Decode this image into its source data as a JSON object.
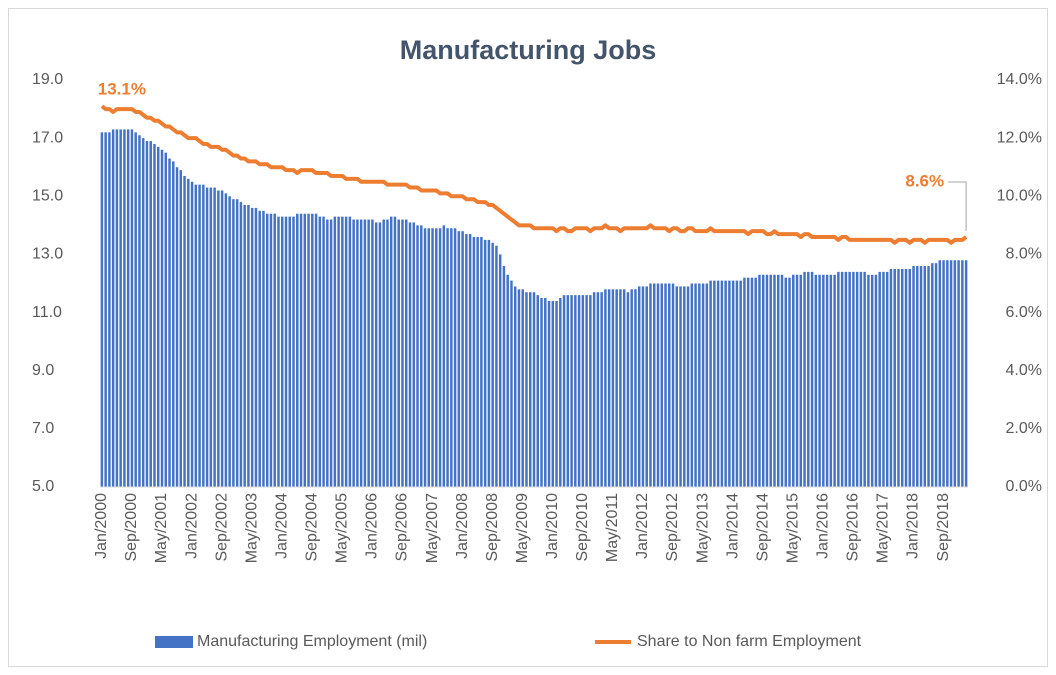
{
  "chart_data": {
    "type": "bar-line",
    "title": "Manufacturing Jobs",
    "categories": [
      "Jan/2000",
      null,
      null,
      null,
      null,
      null,
      null,
      null,
      "Sep/2000",
      null,
      null,
      null,
      null,
      null,
      null,
      null,
      "May/2001",
      null,
      null,
      null,
      null,
      null,
      null,
      null,
      "Jan/2002",
      null,
      null,
      null,
      null,
      null,
      null,
      null,
      "Sep/2002",
      null,
      null,
      null,
      null,
      null,
      null,
      null,
      "May/2003",
      null,
      null,
      null,
      null,
      null,
      null,
      null,
      "Jan/2004",
      null,
      null,
      null,
      null,
      null,
      null,
      null,
      "Sep/2004",
      null,
      null,
      null,
      null,
      null,
      null,
      null,
      "May/2005",
      null,
      null,
      null,
      null,
      null,
      null,
      null,
      "Jan/2006",
      null,
      null,
      null,
      null,
      null,
      null,
      null,
      "Sep/2006",
      null,
      null,
      null,
      null,
      null,
      null,
      null,
      "May/2007",
      null,
      null,
      null,
      null,
      null,
      null,
      null,
      "Jan/2008",
      null,
      null,
      null,
      null,
      null,
      null,
      null,
      "Sep/2008",
      null,
      null,
      null,
      null,
      null,
      null,
      null,
      "May/2009",
      null,
      null,
      null,
      null,
      null,
      null,
      null,
      "Jan/2010",
      null,
      null,
      null,
      null,
      null,
      null,
      null,
      "Sep/2010",
      null,
      null,
      null,
      null,
      null,
      null,
      null,
      "May/2011",
      null,
      null,
      null,
      null,
      null,
      null,
      null,
      "Jan/2012",
      null,
      null,
      null,
      null,
      null,
      null,
      null,
      "Sep/2012",
      null,
      null,
      null,
      null,
      null,
      null,
      null,
      "May/2013",
      null,
      null,
      null,
      null,
      null,
      null,
      null,
      "Jan/2014",
      null,
      null,
      null,
      null,
      null,
      null,
      null,
      "Sep/2014",
      null,
      null,
      null,
      null,
      null,
      null,
      null,
      "May/2015",
      null,
      null,
      null,
      null,
      null,
      null,
      null,
      "Jan/2016",
      null,
      null,
      null,
      null,
      null,
      null,
      null,
      "Sep/2016",
      null,
      null,
      null,
      null,
      null,
      null,
      null,
      "May/2017",
      null,
      null,
      null,
      null,
      null,
      null,
      null,
      "Jan/2018",
      null,
      null,
      null,
      null,
      null,
      null,
      null,
      "Sep/2018",
      null,
      null,
      null,
      null,
      null,
      null
    ],
    "series": [
      {
        "name": "Manufacturing Employment (mil)",
        "type": "bar",
        "color": "#4472c4",
        "values": [
          17.2,
          17.2,
          17.2,
          17.3,
          17.3,
          17.3,
          17.3,
          17.3,
          17.3,
          17.2,
          17.1,
          17.0,
          16.9,
          16.9,
          16.8,
          16.7,
          16.6,
          16.5,
          16.3,
          16.2,
          16.0,
          15.9,
          15.7,
          15.6,
          15.5,
          15.4,
          15.4,
          15.4,
          15.3,
          15.3,
          15.3,
          15.2,
          15.2,
          15.1,
          15.0,
          14.9,
          14.9,
          14.8,
          14.7,
          14.7,
          14.6,
          14.6,
          14.5,
          14.5,
          14.4,
          14.4,
          14.4,
          14.3,
          14.3,
          14.3,
          14.3,
          14.3,
          14.4,
          14.4,
          14.4,
          14.4,
          14.4,
          14.4,
          14.3,
          14.3,
          14.2,
          14.2,
          14.3,
          14.3,
          14.3,
          14.3,
          14.3,
          14.2,
          14.2,
          14.2,
          14.2,
          14.2,
          14.2,
          14.1,
          14.1,
          14.2,
          14.2,
          14.3,
          14.3,
          14.2,
          14.2,
          14.2,
          14.1,
          14.1,
          14.0,
          14.0,
          13.9,
          13.9,
          13.9,
          13.9,
          13.9,
          14.0,
          13.9,
          13.9,
          13.9,
          13.8,
          13.8,
          13.7,
          13.7,
          13.6,
          13.6,
          13.6,
          13.5,
          13.5,
          13.4,
          13.3,
          13.0,
          12.6,
          12.3,
          12.1,
          11.9,
          11.8,
          11.8,
          11.7,
          11.7,
          11.7,
          11.6,
          11.5,
          11.5,
          11.4,
          11.4,
          11.4,
          11.5,
          11.6,
          11.6,
          11.6,
          11.6,
          11.6,
          11.6,
          11.6,
          11.6,
          11.7,
          11.7,
          11.7,
          11.8,
          11.8,
          11.8,
          11.8,
          11.8,
          11.8,
          11.7,
          11.8,
          11.8,
          11.9,
          11.9,
          11.9,
          12.0,
          12.0,
          12.0,
          12.0,
          12.0,
          12.0,
          12.0,
          11.9,
          11.9,
          11.9,
          11.9,
          12.0,
          12.0,
          12.0,
          12.0,
          12.0,
          12.1,
          12.1,
          12.1,
          12.1,
          12.1,
          12.1,
          12.1,
          12.1,
          12.1,
          12.2,
          12.2,
          12.2,
          12.2,
          12.3,
          12.3,
          12.3,
          12.3,
          12.3,
          12.3,
          12.3,
          12.2,
          12.2,
          12.3,
          12.3,
          12.3,
          12.4,
          12.4,
          12.4,
          12.3,
          12.3,
          12.3,
          12.3,
          12.3,
          12.3,
          12.4,
          12.4,
          12.4,
          12.4,
          12.4,
          12.4,
          12.4,
          12.4,
          12.3,
          12.3,
          12.3,
          12.4,
          12.4,
          12.4,
          12.5,
          12.5,
          12.5,
          12.5,
          12.5,
          12.5,
          12.6,
          12.6,
          12.6,
          12.6,
          12.6,
          12.7,
          12.7,
          12.8,
          12.8,
          12.8,
          12.8,
          12.8,
          12.8,
          12.8,
          12.8
        ]
      },
      {
        "name": "Share to Non farm Employment",
        "type": "line",
        "axis": "y2",
        "color": "#ed7d31",
        "values": [
          13.1,
          13.0,
          13.0,
          12.9,
          13.0,
          13.0,
          13.0,
          13.0,
          13.0,
          12.9,
          12.9,
          12.8,
          12.7,
          12.7,
          12.6,
          12.6,
          12.5,
          12.4,
          12.4,
          12.3,
          12.2,
          12.2,
          12.1,
          12.0,
          12.0,
          12.0,
          11.9,
          11.8,
          11.8,
          11.7,
          11.7,
          11.7,
          11.6,
          11.6,
          11.5,
          11.4,
          11.4,
          11.3,
          11.3,
          11.2,
          11.2,
          11.2,
          11.1,
          11.1,
          11.1,
          11.0,
          11.0,
          11.0,
          11.0,
          10.9,
          10.9,
          10.9,
          10.8,
          10.9,
          10.9,
          10.9,
          10.9,
          10.8,
          10.8,
          10.8,
          10.8,
          10.7,
          10.7,
          10.7,
          10.7,
          10.6,
          10.6,
          10.6,
          10.6,
          10.5,
          10.5,
          10.5,
          10.5,
          10.5,
          10.5,
          10.5,
          10.4,
          10.4,
          10.4,
          10.4,
          10.4,
          10.4,
          10.3,
          10.3,
          10.3,
          10.2,
          10.2,
          10.2,
          10.2,
          10.2,
          10.1,
          10.1,
          10.1,
          10.0,
          10.0,
          10.0,
          10.0,
          9.9,
          9.9,
          9.9,
          9.8,
          9.8,
          9.8,
          9.7,
          9.7,
          9.6,
          9.5,
          9.4,
          9.3,
          9.2,
          9.1,
          9.0,
          9.0,
          9.0,
          9.0,
          8.9,
          8.9,
          8.9,
          8.9,
          8.9,
          8.9,
          8.8,
          8.9,
          8.9,
          8.8,
          8.8,
          8.9,
          8.9,
          8.9,
          8.9,
          8.8,
          8.9,
          8.9,
          8.9,
          9.0,
          8.9,
          8.9,
          8.9,
          8.8,
          8.9,
          8.9,
          8.9,
          8.9,
          8.9,
          8.9,
          8.9,
          9.0,
          8.9,
          8.9,
          8.9,
          8.9,
          8.8,
          8.9,
          8.9,
          8.8,
          8.8,
          8.9,
          8.9,
          8.8,
          8.8,
          8.8,
          8.8,
          8.9,
          8.8,
          8.8,
          8.8,
          8.8,
          8.8,
          8.8,
          8.8,
          8.8,
          8.8,
          8.7,
          8.8,
          8.8,
          8.8,
          8.8,
          8.7,
          8.7,
          8.8,
          8.7,
          8.7,
          8.7,
          8.7,
          8.7,
          8.7,
          8.6,
          8.7,
          8.7,
          8.6,
          8.6,
          8.6,
          8.6,
          8.6,
          8.6,
          8.6,
          8.5,
          8.6,
          8.6,
          8.5,
          8.5,
          8.5,
          8.5,
          8.5,
          8.5,
          8.5,
          8.5,
          8.5,
          8.5,
          8.5,
          8.5,
          8.4,
          8.5,
          8.5,
          8.5,
          8.4,
          8.5,
          8.5,
          8.5,
          8.4,
          8.5,
          8.5,
          8.5,
          8.5,
          8.5,
          8.5,
          8.4,
          8.5,
          8.5,
          8.5,
          8.6
        ],
        "value_labels": [
          "13.1%",
          null,
          null,
          null,
          null,
          null,
          null,
          null,
          null,
          null,
          null,
          null,
          null,
          null,
          null,
          null,
          null,
          null,
          null,
          null,
          null,
          null,
          null,
          null,
          null,
          null,
          null,
          null,
          null,
          null,
          null,
          null,
          null,
          null,
          null,
          null,
          null,
          null,
          null,
          null,
          null,
          null,
          null,
          null,
          null,
          null,
          null,
          null,
          null,
          null,
          null,
          null,
          null,
          null,
          null,
          null,
          null,
          null,
          null,
          null,
          null,
          null,
          null,
          null,
          null,
          null,
          null,
          null,
          null,
          null,
          null,
          null,
          null,
          null,
          null,
          null,
          null,
          null,
          null,
          null,
          null,
          null,
          null,
          null,
          null,
          null,
          null,
          null,
          null,
          null,
          null,
          null,
          null,
          null,
          null,
          null,
          null,
          null,
          null,
          null,
          null,
          null,
          null,
          null,
          null,
          null,
          null,
          null,
          null,
          null,
          null,
          null,
          null,
          null,
          null,
          null,
          null,
          null,
          null,
          null,
          null,
          null,
          null,
          null,
          null,
          null,
          null,
          null,
          null,
          null,
          null,
          null,
          null,
          null,
          null,
          null,
          null,
          null,
          null,
          null,
          null,
          null,
          null,
          null,
          null,
          null,
          null,
          null,
          null,
          null,
          null,
          null,
          null,
          null,
          null,
          null,
          null,
          null,
          null,
          null,
          null,
          null,
          null,
          null,
          null,
          null,
          null,
          null,
          null,
          null,
          null,
          null,
          null,
          null,
          null,
          null,
          null,
          null,
          null,
          null,
          null,
          null,
          null,
          null,
          null,
          null,
          null,
          null,
          null,
          null,
          null,
          null,
          null,
          null,
          null,
          null,
          null,
          null,
          null,
          null,
          null,
          null,
          null,
          null,
          null,
          null,
          null,
          null,
          null,
          null,
          null,
          null,
          null,
          null,
          null,
          null,
          null,
          null,
          null,
          null,
          null,
          null,
          null,
          null,
          null,
          null,
          null,
          null,
          null,
          null,
          "8.6%"
        ]
      }
    ],
    "ylim": [
      5,
      19
    ],
    "yticks": [
      {
        "value": 5,
        "label": "5.0"
      },
      {
        "value": 7,
        "label": "7.0"
      },
      {
        "value": 9,
        "label": "9.0"
      },
      {
        "value": 11,
        "label": "11.0"
      },
      {
        "value": 13,
        "label": "13.0"
      },
      {
        "value": 15,
        "label": "15.0"
      },
      {
        "value": 17,
        "label": "17.0"
      },
      {
        "value": 19,
        "label": "19.0"
      }
    ],
    "y2lim": [
      0,
      14
    ],
    "y2ticks": [
      {
        "value": 0,
        "label": "0.0%"
      },
      {
        "value": 2,
        "label": "2.0%"
      },
      {
        "value": 4,
        "label": "4.0%"
      },
      {
        "value": 6,
        "label": "6.0%"
      },
      {
        "value": 8,
        "label": "8.0%"
      },
      {
        "value": 10,
        "label": "10.0%"
      },
      {
        "value": 12,
        "label": "12.0%"
      },
      {
        "value": 14,
        "label": "14.0%"
      }
    ],
    "grid": false,
    "legend": "bottom"
  }
}
